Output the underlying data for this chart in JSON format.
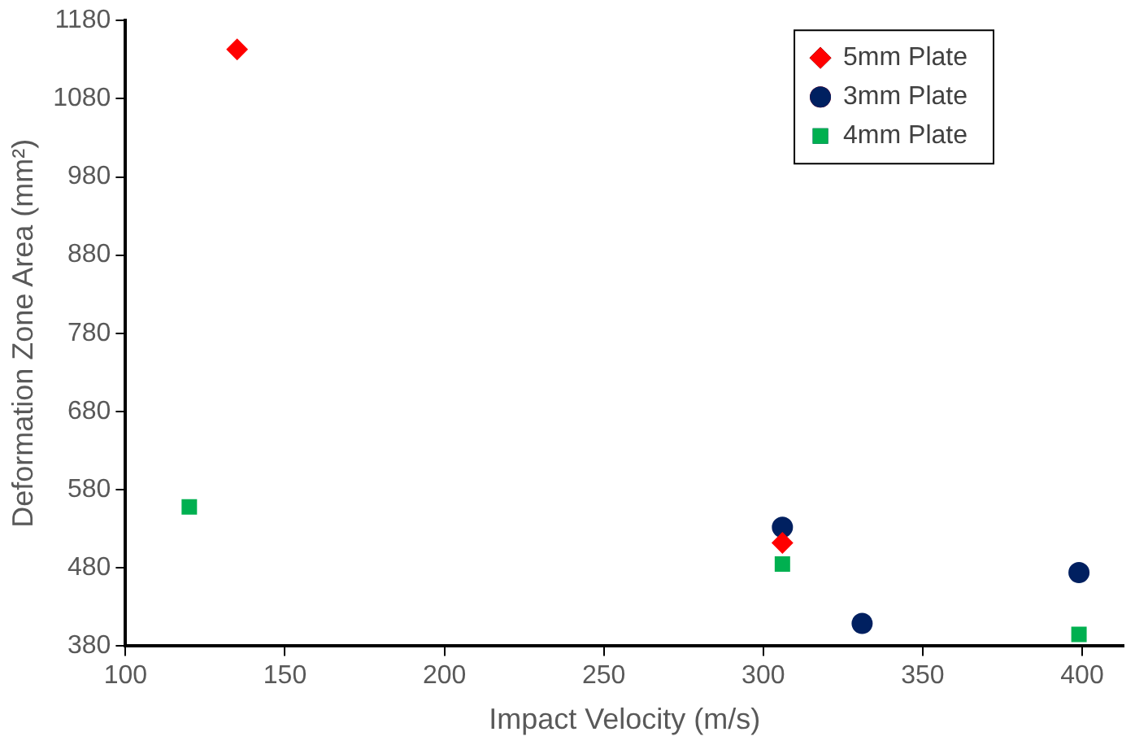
{
  "chart_data": {
    "type": "scatter",
    "xlabel": "Impact Velocity (m/s)",
    "ylabel": "Deformation Zone Area (mm²)",
    "xlim": [
      100,
      413
    ],
    "xticks": [
      100,
      150,
      200,
      250,
      300,
      350,
      400
    ],
    "ylim": [
      380,
      1180
    ],
    "yticks": [
      380,
      480,
      580,
      680,
      780,
      880,
      980,
      1080,
      1180
    ],
    "grid": false,
    "legend": "top right",
    "series": [
      {
        "name": "5mm Plate",
        "color": "#ff0000",
        "marker": "diamond",
        "x": [
          135,
          306
        ],
        "values": [
          1143,
          512
        ]
      },
      {
        "name": "3mm Plate",
        "color": "#002060",
        "marker": "circle",
        "x": [
          306,
          331,
          399
        ],
        "values": [
          532,
          409,
          474
        ]
      },
      {
        "name": "4mm Plate",
        "color": "#00b050",
        "marker": "square",
        "x": [
          120,
          306,
          399
        ],
        "values": [
          558,
          485,
          395
        ]
      }
    ]
  }
}
